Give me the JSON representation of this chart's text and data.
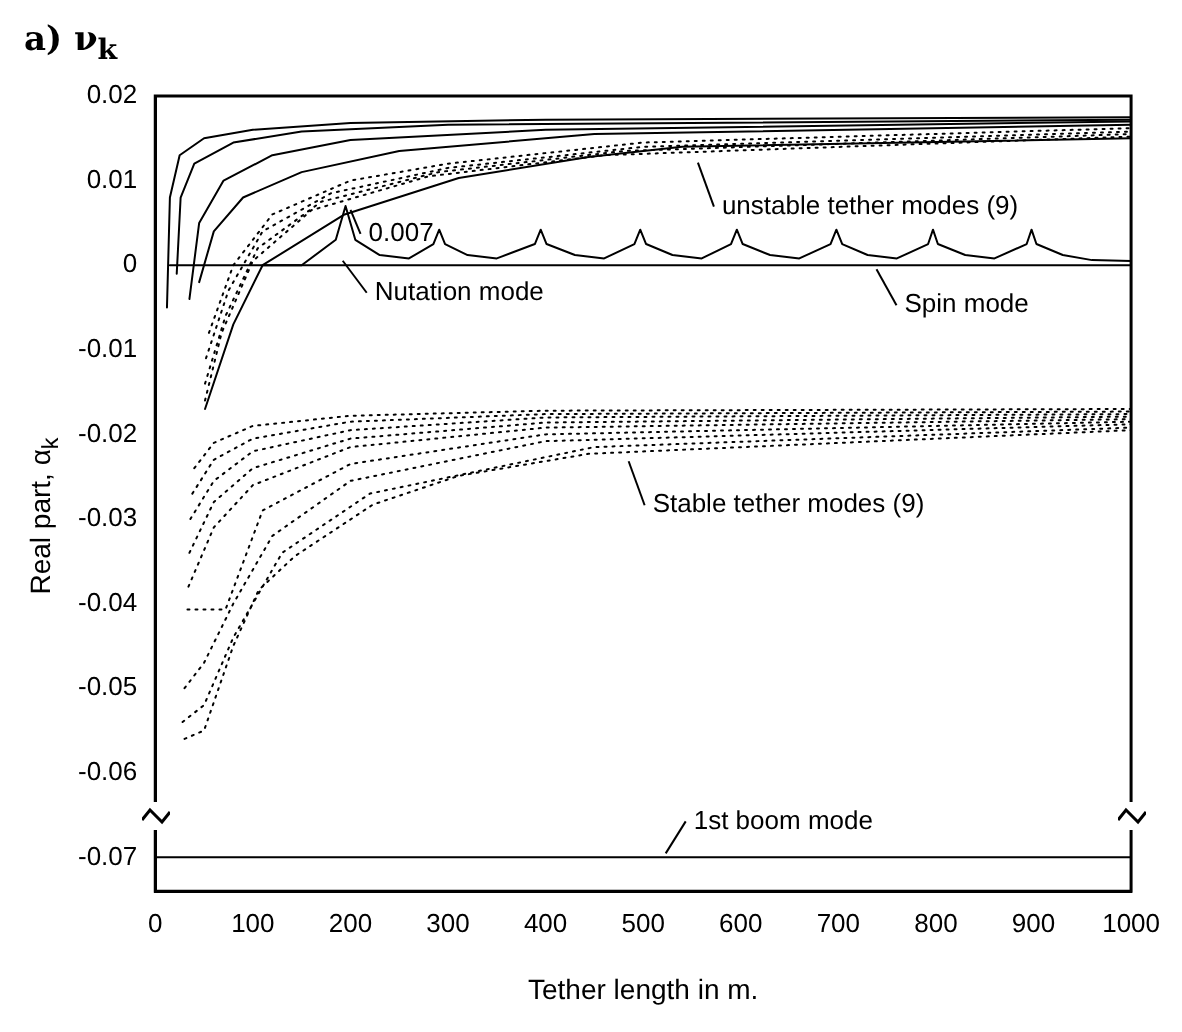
{
  "chart_data": {
    "type": "line",
    "title": "a) ν$_{k}$",
    "xlabel": "Tether length in m.",
    "ylabel": "Real part, α$_{k}$",
    "xlim": [
      0,
      1000
    ],
    "xticks": [
      0,
      100,
      200,
      300,
      400,
      500,
      600,
      700,
      800,
      900,
      1000
    ],
    "ylim": [
      -0.074,
      0.02
    ],
    "yticks": [
      -0.07,
      -0.06,
      -0.05,
      -0.04,
      -0.03,
      -0.02,
      -0.01,
      0,
      0.01,
      0.02
    ],
    "grid": false,
    "legend": false,
    "marker": "none",
    "annotations": [
      {
        "text": "0.007",
        "x": 196,
        "y": 0.007
      },
      {
        "text": "Nutation mode",
        "x": 188,
        "y": 0.001
      },
      {
        "text": "unstable tether modes (9)",
        "x": 552,
        "y": 0.0126
      },
      {
        "text": "Spin mode",
        "x": 735,
        "y": 0
      },
      {
        "text": "Stable tether modes (9)",
        "x": 481,
        "y": -0.0227
      },
      {
        "text": "1st boom mode",
        "x": 519,
        "y": -0.07
      }
    ],
    "series": [
      {
        "color": "#000000",
        "line_style": "solid",
        "x": [
          12,
          15,
          25,
          50,
          100,
          200,
          400,
          1000
        ],
        "values": [
          -0.005,
          0.008,
          0.013,
          0.015,
          0.016,
          0.0168,
          0.0172,
          0.0175
        ]
      },
      {
        "color": "#000000",
        "line_style": "solid",
        "x": [
          22,
          26,
          40,
          80,
          150,
          300,
          1000
        ],
        "values": [
          -0.001,
          0.008,
          0.012,
          0.0145,
          0.0158,
          0.0166,
          0.0172
        ]
      },
      {
        "color": "#000000",
        "line_style": "solid",
        "x": [
          35,
          45,
          70,
          120,
          200,
          400,
          1000
        ],
        "values": [
          -0.004,
          0.005,
          0.01,
          0.013,
          0.0148,
          0.016,
          0.017
        ]
      },
      {
        "color": "#000000",
        "line_style": "solid",
        "x": [
          45,
          60,
          90,
          150,
          250,
          450,
          1000
        ],
        "values": [
          -0.002,
          0.004,
          0.008,
          0.011,
          0.0135,
          0.0155,
          0.0166
        ]
      },
      {
        "color": "#000000",
        "line_style": "dotted",
        "x": [
          55,
          80,
          120,
          200,
          300,
          500,
          1000
        ],
        "values": [
          -0.008,
          0,
          0.006,
          0.01,
          0.012,
          0.0145,
          0.0162
        ]
      },
      {
        "color": "#000000",
        "line_style": "dotted",
        "x": [
          52,
          75,
          110,
          180,
          300,
          500,
          1000
        ],
        "values": [
          -0.011,
          -0.003,
          0.004,
          0.0085,
          0.0115,
          0.014,
          0.0158
        ]
      },
      {
        "color": "#000000",
        "line_style": "dotted",
        "x": [
          51,
          72,
          105,
          170,
          290,
          480,
          1000
        ],
        "values": [
          -0.014,
          -0.006,
          0.002,
          0.0075,
          0.011,
          0.0135,
          0.0155
        ]
      },
      {
        "color": "#000000",
        "line_style": "dotted",
        "x": [
          51,
          68,
          100,
          160,
          280,
          460,
          1000
        ],
        "values": [
          -0.016,
          -0.008,
          0.0005,
          0.0065,
          0.0105,
          0.013,
          0.0152
        ]
      },
      {
        "color": "#000000",
        "line_style": "solid",
        "x": [
          51,
          80,
          110,
          194,
          311,
          444,
          540,
          1000
        ],
        "values": [
          -0.017,
          -0.007,
          0,
          0.006,
          0.0103,
          0.0128,
          0.014,
          0.015
        ]
      },
      {
        "color": "#000000",
        "line_style": "dotted",
        "x": [
          40,
          60,
          100,
          200,
          400,
          1000
        ],
        "values": [
          -0.024,
          -0.021,
          -0.019,
          -0.0178,
          -0.0172,
          -0.017
        ]
      },
      {
        "color": "#000000",
        "line_style": "dotted",
        "x": [
          38,
          60,
          100,
          200,
          400,
          1000
        ],
        "values": [
          -0.027,
          -0.023,
          -0.0205,
          -0.0185,
          -0.0176,
          -0.0173
        ]
      },
      {
        "color": "#000000",
        "line_style": "dotted",
        "x": [
          36,
          60,
          100,
          200,
          400,
          1000
        ],
        "values": [
          -0.03,
          -0.0255,
          -0.022,
          -0.0195,
          -0.018,
          -0.0176
        ]
      },
      {
        "color": "#000000",
        "line_style": "dotted",
        "x": [
          35,
          60,
          100,
          200,
          400,
          1000
        ],
        "values": [
          -0.034,
          -0.028,
          -0.024,
          -0.0205,
          -0.0186,
          -0.0179
        ]
      },
      {
        "color": "#000000",
        "line_style": "dotted",
        "x": [
          34,
          60,
          100,
          200,
          400,
          1000
        ],
        "values": [
          -0.038,
          -0.031,
          -0.026,
          -0.0215,
          -0.0192,
          -0.0182
        ]
      },
      {
        "color": "#000000",
        "line_style": "dotted",
        "x": [
          33,
          72,
          110,
          200,
          400,
          1000
        ],
        "values": [
          -0.0407,
          -0.0407,
          -0.029,
          -0.0235,
          -0.02,
          -0.0185
        ]
      },
      {
        "color": "#000000",
        "line_style": "dotted",
        "x": [
          30,
          50,
          80,
          120,
          200,
          400,
          1000
        ],
        "values": [
          -0.05,
          -0.047,
          -0.04,
          -0.032,
          -0.0255,
          -0.0208,
          -0.0188
        ]
      },
      {
        "color": "#000000",
        "line_style": "dotted",
        "x": [
          28,
          50,
          80,
          130,
          220,
          450,
          1000
        ],
        "values": [
          -0.054,
          -0.052,
          -0.044,
          -0.034,
          -0.027,
          -0.0215,
          -0.0192
        ]
      },
      {
        "color": "#000000",
        "line_style": "dotted",
        "x": [
          30,
          50,
          80,
          106,
          143,
          223,
          311,
          444,
          1000
        ],
        "values": [
          -0.056,
          -0.055,
          -0.045,
          -0.0384,
          -0.0344,
          -0.0283,
          -0.0249,
          -0.0223,
          -0.0195
        ]
      },
      {
        "color": "#000000",
        "line_style": "solid",
        "x": [
          110,
          150,
          185,
          195,
          205,
          230,
          260,
          285,
          291,
          297,
          320,
          350,
          389,
          395,
          401,
          430,
          460,
          491,
          497,
          503,
          530,
          560,
          590,
          596,
          602,
          630,
          660,
          692,
          698,
          704,
          730,
          760,
          792,
          797,
          802,
          830,
          860,
          893,
          898,
          903,
          930,
          960,
          1000
        ],
        "values": [
          0,
          0,
          0.003,
          0.007,
          0.003,
          0.0012,
          0.0008,
          0.0025,
          0.0042,
          0.0025,
          0.0012,
          0.0008,
          0.0025,
          0.0042,
          0.0025,
          0.0012,
          0.0008,
          0.0025,
          0.0042,
          0.0025,
          0.0012,
          0.0008,
          0.0025,
          0.0042,
          0.0025,
          0.0012,
          0.0008,
          0.0025,
          0.0042,
          0.0025,
          0.0012,
          0.0008,
          0.0025,
          0.0042,
          0.0025,
          0.0012,
          0.0008,
          0.0025,
          0.0042,
          0.0025,
          0.0012,
          0.0006,
          0.0005
        ]
      },
      {
        "color": "#000000",
        "line_style": "solid",
        "x": [
          15,
          1000
        ],
        "values": [
          0,
          0
        ]
      },
      {
        "color": "#000000",
        "line_style": "solid",
        "x": [
          0,
          1000
        ],
        "values": [
          -0.07,
          -0.07
        ]
      }
    ]
  }
}
